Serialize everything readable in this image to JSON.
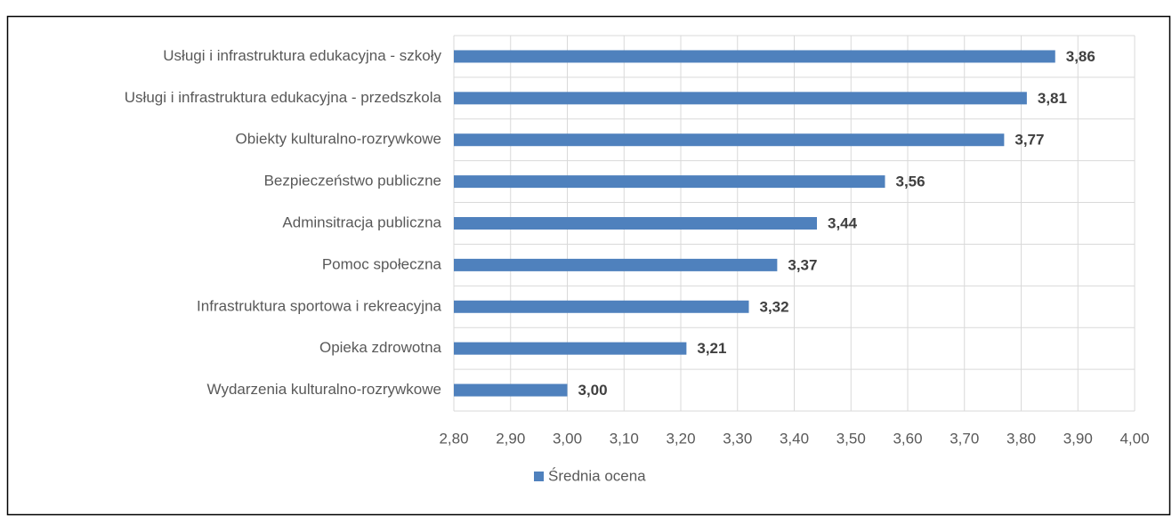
{
  "chart_data": {
    "type": "hbar",
    "categories": [
      "Usługi i infrastruktura edukacyjna - szkoły",
      "Usługi i infrastruktura edukacyjna - przedszkola",
      "Obiekty kulturalno-rozrywkowe",
      "Bezpieczeństwo publiczne",
      "Adminsitracja publiczna",
      "Pomoc społeczna",
      "Infrastruktura sportowa i rekreacyjna",
      "Opieka zdrowotna",
      "Wydarzenia kulturalno-rozrywkowe"
    ],
    "series": [
      {
        "name": "Średnia ocena",
        "color": "#4f81bd",
        "values": [
          3.86,
          3.81,
          3.77,
          3.56,
          3.44,
          3.37,
          3.32,
          3.21,
          3.0
        ],
        "value_labels": [
          "3,86",
          "3,81",
          "3,77",
          "3,56",
          "3,44",
          "3,37",
          "3,32",
          "3,21",
          "3,00"
        ]
      }
    ],
    "xlim": [
      2.8,
      4.0
    ],
    "xticks": [
      {
        "value": 2.8,
        "label": "2,80"
      },
      {
        "value": 2.9,
        "label": "2,90"
      },
      {
        "value": 3.0,
        "label": "3,00"
      },
      {
        "value": 3.1,
        "label": "3,10"
      },
      {
        "value": 3.2,
        "label": "3,20"
      },
      {
        "value": 3.3,
        "label": "3,30"
      },
      {
        "value": 3.4,
        "label": "3,40"
      },
      {
        "value": 3.5,
        "label": "3,50"
      },
      {
        "value": 3.6,
        "label": "3,60"
      },
      {
        "value": 3.7,
        "label": "3,70"
      },
      {
        "value": 3.8,
        "label": "3,80"
      },
      {
        "value": 3.9,
        "label": "3,90"
      },
      {
        "value": 4.0,
        "label": "4,00"
      }
    ],
    "grid": true,
    "legend": "bottom"
  }
}
